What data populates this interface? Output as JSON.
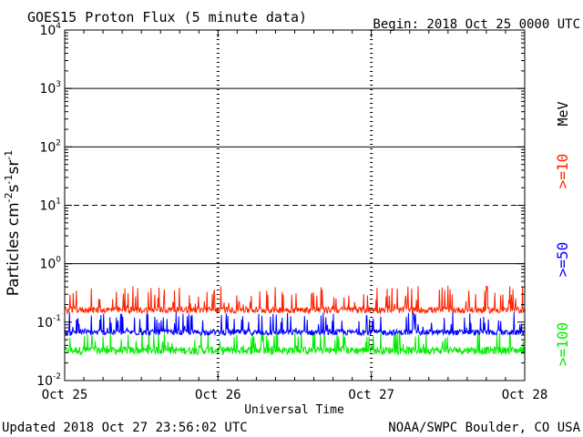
{
  "header": {
    "title": "GOES15 Proton Flux (5 minute data)",
    "begin": "Begin: 2018 Oct 25 0000 UTC"
  },
  "footer": {
    "updated": "Updated 2018 Oct 27 23:56:02 UTC",
    "source": "NOAA/SWPC Boulder, CO USA"
  },
  "chart_data": {
    "type": "line",
    "ylabel": "Particles cm-2s-1sr-1",
    "xlabel": "Universal Time",
    "y_scale": "log",
    "ylim": [
      0.01,
      10000
    ],
    "y_ticks": [
      {
        "value": 0.01,
        "base": "10",
        "exp": "-2"
      },
      {
        "value": 0.1,
        "base": "10",
        "exp": "-1"
      },
      {
        "value": 1,
        "base": "10",
        "exp": "0"
      },
      {
        "value": 10,
        "base": "10",
        "exp": "1"
      },
      {
        "value": 100,
        "base": "10",
        "exp": "2"
      },
      {
        "value": 1000,
        "base": "10",
        "exp": "3"
      },
      {
        "value": 10000,
        "base": "10",
        "exp": "4"
      }
    ],
    "x_ticks": [
      "Oct 25",
      "Oct 26",
      "Oct 27",
      "Oct 28"
    ],
    "xlim": [
      "2018-10-25 00:00",
      "2018-10-28 00:00"
    ],
    "threshold_lines": [
      {
        "value": 1,
        "style": "solid"
      },
      {
        "value": 10,
        "style": "dashed"
      },
      {
        "value": 100,
        "style": "solid"
      },
      {
        "value": 1000,
        "style": "solid"
      }
    ],
    "unit_label": "MeV",
    "series": [
      {
        "name": ">=10",
        "color": "#ff2200",
        "baseline": 0.17,
        "low": 0.13,
        "high": 0.42
      },
      {
        "name": ">=50",
        "color": "#0000ff",
        "baseline": 0.07,
        "low": 0.055,
        "high": 0.15
      },
      {
        "name": ">=100",
        "color": "#00ee00",
        "baseline": 0.035,
        "low": 0.025,
        "high": 0.075
      }
    ]
  }
}
